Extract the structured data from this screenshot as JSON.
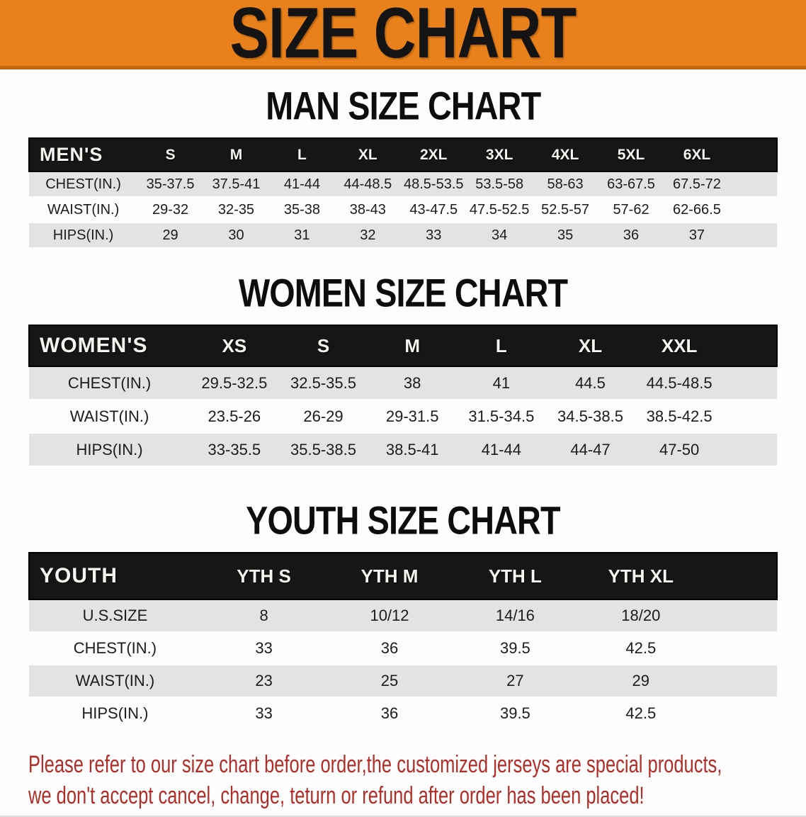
{
  "banner": {
    "title": "SIZE CHART",
    "bg_color": "#e8811b",
    "text_color": "#141414"
  },
  "sections": [
    {
      "heading": "MAN SIZE CHART",
      "table": {
        "header_label": "MEN'S",
        "sizes": [
          "S",
          "M",
          "L",
          "XL",
          "2XL",
          "3XL",
          "4XL",
          "5XL",
          "6XL"
        ],
        "rows": [
          {
            "label": "CHEST(IN.)",
            "values": [
              "35-37.5",
              "37.5-41",
              "41-44",
              "44-48.5",
              "48.5-53.5",
              "53.5-58",
              "58-63",
              "63-67.5",
              "67.5-72"
            ]
          },
          {
            "label": "WAIST(IN.)",
            "values": [
              "29-32",
              "32-35",
              "35-38",
              "38-43",
              "43-47.5",
              "47.5-52.5",
              "52.5-57",
              "57-62",
              "62-66.5"
            ]
          },
          {
            "label": "HIPS(IN.)",
            "values": [
              "29",
              "30",
              "31",
              "32",
              "33",
              "34",
              "35",
              "36",
              "37"
            ]
          }
        ]
      }
    },
    {
      "heading": "WOMEN SIZE CHART",
      "table": {
        "header_label": "WOMEN'S",
        "sizes": [
          "XS",
          "S",
          "M",
          "L",
          "XL",
          "XXL"
        ],
        "rows": [
          {
            "label": "CHEST(IN.)",
            "values": [
              "29.5-32.5",
              "32.5-35.5",
              "38",
              "41",
              "44.5",
              "44.5-48.5"
            ]
          },
          {
            "label": "WAIST(IN.)",
            "values": [
              "23.5-26",
              "26-29",
              "29-31.5",
              "31.5-34.5",
              "34.5-38.5",
              "38.5-42.5"
            ]
          },
          {
            "label": "HIPS(IN.)",
            "values": [
              "33-35.5",
              "35.5-38.5",
              "38.5-41",
              "41-44",
              "44-47",
              "47-50"
            ]
          }
        ]
      }
    },
    {
      "heading": "YOUTH SIZE CHART",
      "table": {
        "header_label": "YOUTH",
        "sizes": [
          "YTH S",
          "YTH M",
          "YTH L",
          "YTH XL"
        ],
        "rows": [
          {
            "label": "U.S.SIZE",
            "values": [
              "8",
              "10/12",
              "14/16",
              "18/20"
            ]
          },
          {
            "label": "CHEST(IN.)",
            "values": [
              "33",
              "36",
              "39.5",
              "42.5"
            ]
          },
          {
            "label": "WAIST(IN.)",
            "values": [
              "23",
              "25",
              "27",
              "29"
            ]
          },
          {
            "label": "HIPS(IN.)",
            "values": [
              "33",
              "36",
              "39.5",
              "42.5"
            ]
          }
        ]
      }
    }
  ],
  "disclaimer": {
    "line1": "Please refer to our size chart before order,the customized jerseys are special products,",
    "line2": "we don't accept cancel, change, teturn or refund after order has been placed!",
    "color": "#b12d27"
  }
}
